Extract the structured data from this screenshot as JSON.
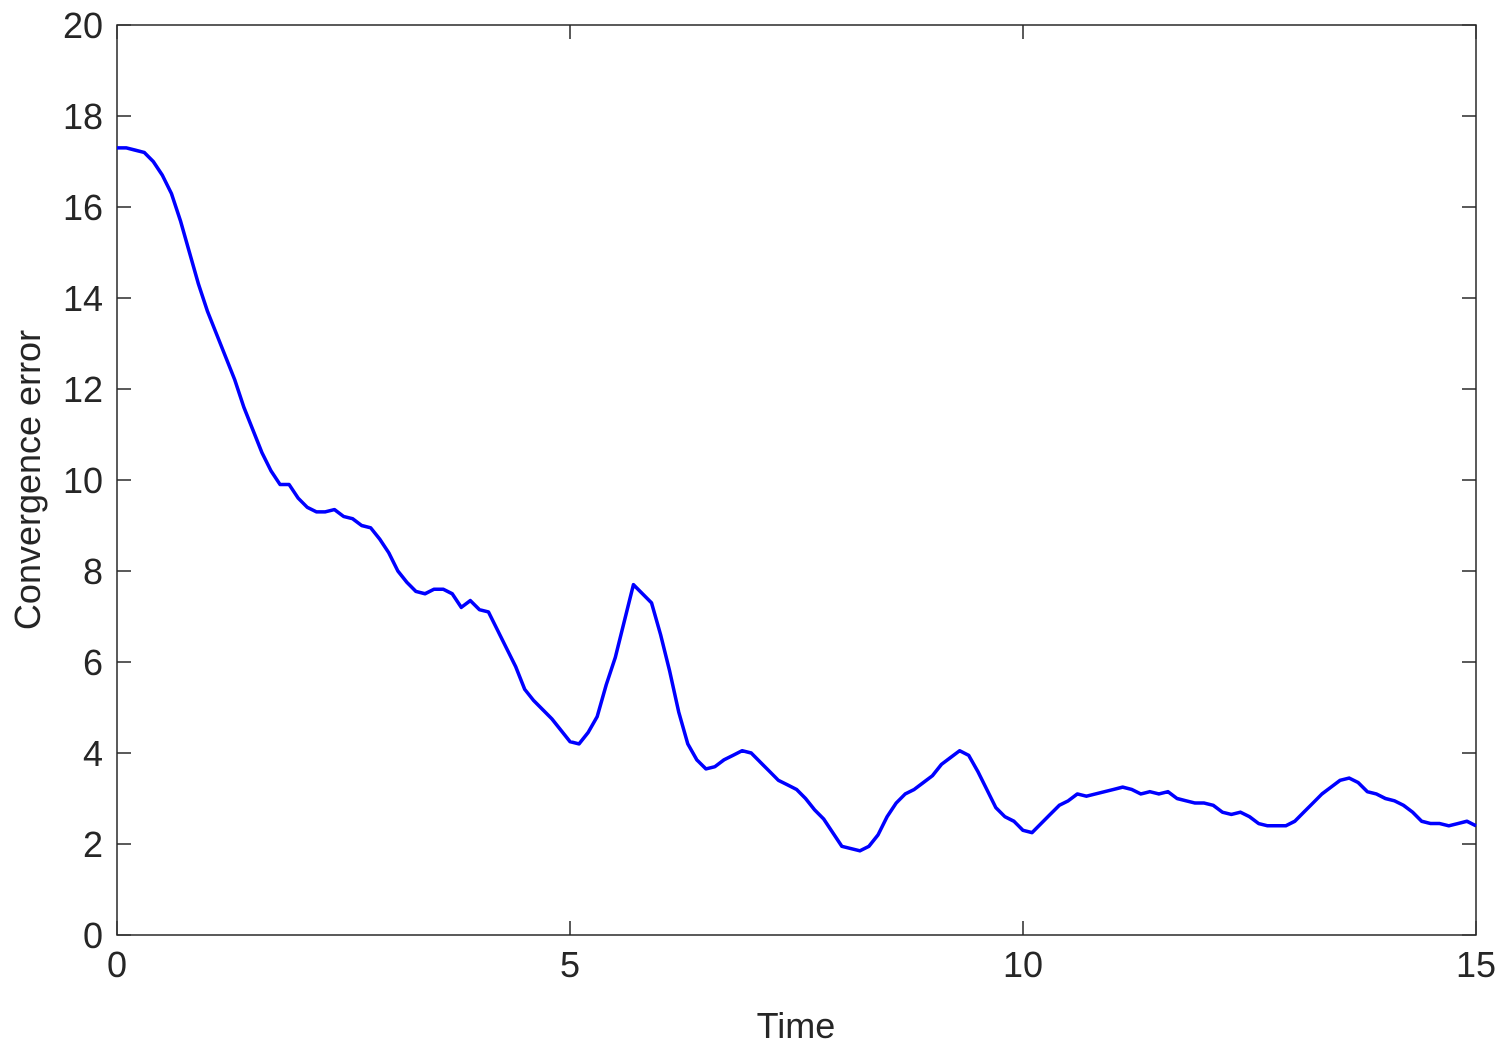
{
  "chart_data": {
    "type": "line",
    "xlabel": "Time",
    "ylabel": "Convergence error",
    "xlim": [
      0,
      15
    ],
    "ylim": [
      0,
      20
    ],
    "xticks": [
      0,
      5,
      10,
      15
    ],
    "yticks": [
      0,
      2,
      4,
      6,
      8,
      10,
      12,
      14,
      16,
      18,
      20
    ],
    "grid": false,
    "x": [
      0,
      0.1,
      0.2,
      0.3,
      0.4,
      0.5,
      0.6,
      0.7,
      0.8,
      0.9,
      1,
      1.1,
      1.2,
      1.3,
      1.4,
      1.5,
      1.6,
      1.7,
      1.8,
      1.9,
      2,
      2.1,
      2.2,
      2.3,
      2.4,
      2.5,
      2.6,
      2.7,
      2.8,
      2.9,
      3,
      3.1,
      3.2,
      3.3,
      3.4,
      3.5,
      3.6,
      3.7,
      3.8,
      3.9,
      4,
      4.1,
      4.2,
      4.3,
      4.4,
      4.5,
      4.6,
      4.7,
      4.8,
      4.9,
      5,
      5.1,
      5.2,
      5.3,
      5.4,
      5.5,
      5.6,
      5.7,
      5.8,
      5.9,
      6,
      6.1,
      6.2,
      6.3,
      6.4,
      6.5,
      6.6,
      6.7,
      6.8,
      6.9,
      7,
      7.1,
      7.2,
      7.3,
      7.4,
      7.5,
      7.6,
      7.7,
      7.8,
      7.9,
      8,
      8.1,
      8.2,
      8.3,
      8.4,
      8.5,
      8.6,
      8.7,
      8.8,
      8.9,
      9,
      9.1,
      9.2,
      9.3,
      9.4,
      9.5,
      9.6,
      9.7,
      9.8,
      9.9,
      10,
      10.1,
      10.2,
      10.3,
      10.4,
      10.5,
      10.6,
      10.7,
      10.8,
      10.9,
      11,
      11.1,
      11.2,
      11.3,
      11.4,
      11.5,
      11.6,
      11.7,
      11.8,
      11.9,
      12,
      12.1,
      12.2,
      12.3,
      12.4,
      12.5,
      12.6,
      12.7,
      12.8,
      12.9,
      13,
      13.1,
      13.2,
      13.3,
      13.4,
      13.5,
      13.6,
      13.7,
      13.8,
      13.9,
      14,
      14.1,
      14.2,
      14.3,
      14.4,
      14.5,
      14.6,
      14.7,
      14.8,
      14.9,
      15
    ],
    "series": [
      {
        "color": "#0000ff",
        "values": [
          17.3,
          17.3,
          17.25,
          17.2,
          17.0,
          16.7,
          16.3,
          15.7,
          15.0,
          14.3,
          13.7,
          13.2,
          12.7,
          12.2,
          11.6,
          11.1,
          10.6,
          10.2,
          9.9,
          9.9,
          9.6,
          9.4,
          9.3,
          9.3,
          9.35,
          9.2,
          9.15,
          9.0,
          8.95,
          8.7,
          8.4,
          8.0,
          7.75,
          7.55,
          7.5,
          7.6,
          7.6,
          7.5,
          7.2,
          7.35,
          7.15,
          7.1,
          6.7,
          6.3,
          5.9,
          5.4,
          5.15,
          4.95,
          4.75,
          4.5,
          4.25,
          4.2,
          4.45,
          4.8,
          5.5,
          6.1,
          6.9,
          7.7,
          7.5,
          7.3,
          6.6,
          5.8,
          4.9,
          4.2,
          3.85,
          3.65,
          3.7,
          3.85,
          3.95,
          4.05,
          4.0,
          3.8,
          3.6,
          3.4,
          3.3,
          3.2,
          3.0,
          2.75,
          2.55,
          2.25,
          1.95,
          1.9,
          1.85,
          1.95,
          2.2,
          2.6,
          2.9,
          3.1,
          3.2,
          3.35,
          3.5,
          3.75,
          3.9,
          4.05,
          3.95,
          3.6,
          3.2,
          2.8,
          2.6,
          2.5,
          2.3,
          2.25,
          2.45,
          2.65,
          2.85,
          2.95,
          3.1,
          3.05,
          3.1,
          3.15,
          3.2,
          3.25,
          3.2,
          3.1,
          3.15,
          3.1,
          3.15,
          3.0,
          2.95,
          2.9,
          2.9,
          2.85,
          2.7,
          2.65,
          2.7,
          2.6,
          2.45,
          2.4,
          2.4,
          2.4,
          2.5,
          2.7,
          2.9,
          3.1,
          3.25,
          3.4,
          3.45,
          3.35,
          3.15,
          3.1,
          3.0,
          2.95,
          2.85,
          2.7,
          2.5,
          2.45,
          2.45,
          2.4,
          2.45,
          2.5,
          2.4
        ]
      }
    ]
  }
}
